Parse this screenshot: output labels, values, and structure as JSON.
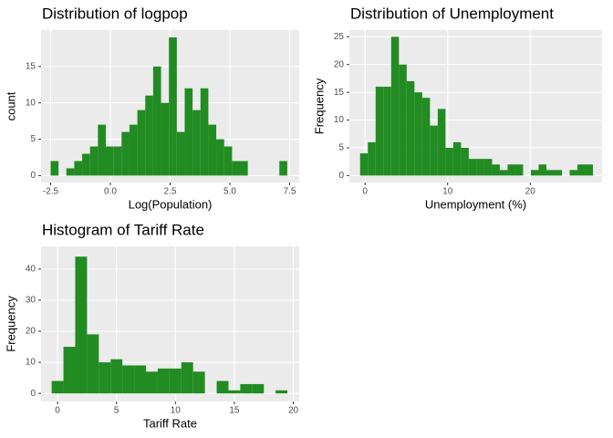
{
  "chart_data": [
    {
      "type": "histogram",
      "title": "Distribution of logpop",
      "x_label": "Log(Population)",
      "y_label": "count",
      "color": "#228B22",
      "grid": true,
      "bins": [
        -2.5,
        -2.17,
        -1.84,
        -1.51,
        -1.18,
        -0.85,
        -0.52,
        -0.19,
        0.14,
        0.47,
        0.8,
        1.13,
        1.46,
        1.79,
        2.12,
        2.45,
        2.78,
        3.11,
        3.44,
        3.77,
        4.1,
        4.43,
        4.76,
        5.09,
        5.42,
        5.75,
        6.08,
        6.41,
        6.74,
        7.07,
        7.4
      ],
      "counts": [
        2,
        0,
        1,
        2,
        3,
        4,
        7,
        4,
        4,
        6,
        7,
        9,
        11,
        15,
        10,
        19,
        6,
        12,
        9,
        12,
        7,
        5,
        4,
        2,
        2,
        0,
        0,
        0,
        0,
        2
      ],
      "xlim": [
        -2.9,
        7.9
      ],
      "ylim": [
        -0.95,
        20
      ],
      "xticks": [
        -2.5,
        {
          "value": 0,
          "label": "0.0"
        },
        2.5,
        {
          "value": 5,
          "label": "5.0"
        },
        7.5
      ],
      "yticks": [
        0,
        5,
        10,
        15
      ]
    },
    {
      "type": "histogram",
      "title": "Distribution of Unemployment",
      "x_label": "Unemployment (%)",
      "y_label": "Frequency",
      "color": "#228B22",
      "grid": true,
      "bins": [
        -0.6,
        0.34,
        1.28,
        2.22,
        3.16,
        4.1,
        5.04,
        5.98,
        6.92,
        7.86,
        8.8,
        9.74,
        10.68,
        11.62,
        12.56,
        13.5,
        14.44,
        15.38,
        16.32,
        17.26,
        18.2,
        19.14,
        20.08,
        21.02,
        21.96,
        22.9,
        23.84,
        24.78,
        25.72,
        26.66,
        27.6
      ],
      "counts": [
        4,
        6,
        16,
        16,
        25,
        20,
        17,
        15,
        14,
        9,
        12,
        5,
        6,
        5,
        3,
        3,
        3,
        2,
        1,
        2,
        2,
        0,
        1,
        2,
        1,
        1,
        0,
        1,
        2,
        2
      ],
      "xlim": [
        -1.9,
        28.7
      ],
      "ylim": [
        -1.25,
        26.2
      ],
      "xticks": [
        0,
        10,
        20
      ],
      "yticks": [
        0,
        5,
        10,
        15,
        20,
        25
      ]
    },
    {
      "type": "histogram",
      "title": "Histogram of Tariff Rate",
      "x_label": "Tariff Rate",
      "y_label": "Frequency",
      "color": "#228B22",
      "grid": true,
      "bins": [
        -0.5,
        0.5,
        1.5,
        2.5,
        3.5,
        4.5,
        5.5,
        6.5,
        7.5,
        8.5,
        9.5,
        10.5,
        11.5,
        12.5,
        13.5,
        14.5,
        15.5,
        16.5,
        17.5,
        18.5,
        19.5
      ],
      "counts": [
        4,
        15,
        44,
        19,
        10,
        11,
        9,
        9,
        7,
        8,
        8,
        10,
        7,
        0,
        4,
        1,
        3,
        3,
        0,
        1
      ],
      "xlim": [
        -1.4,
        20.5
      ],
      "ylim": [
        -2.6,
        47.3
      ],
      "xticks": [
        0,
        5,
        10,
        15,
        20
      ],
      "yticks": [
        0,
        10,
        20,
        30,
        40
      ]
    }
  ]
}
